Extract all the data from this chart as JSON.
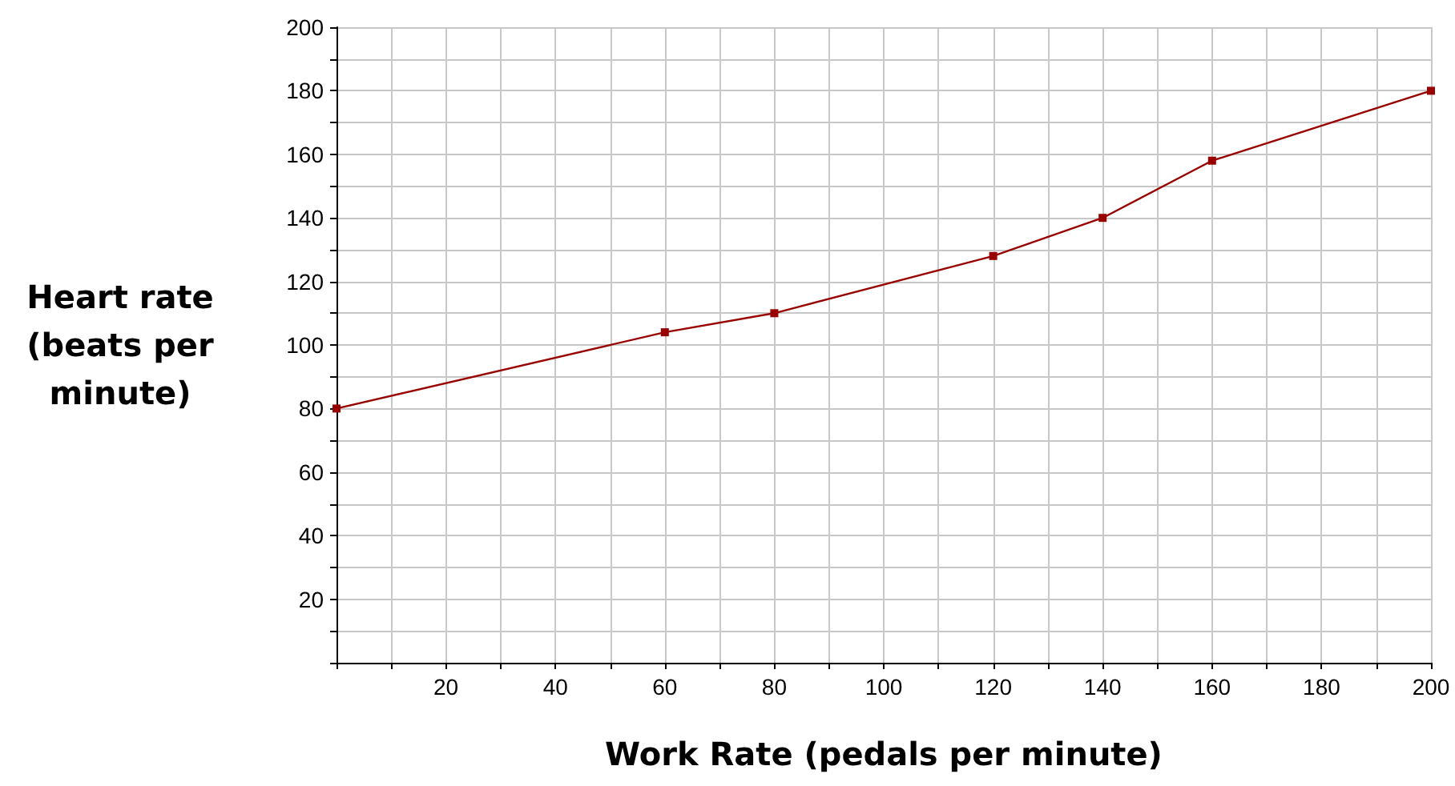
{
  "chart_data": {
    "type": "line",
    "xlabel": "Work Rate (pedals per minute)",
    "ylabel": "Heart rate (beats per minute)",
    "x": [
      0,
      60,
      80,
      120,
      140,
      160,
      200
    ],
    "series": [
      {
        "color": "#990000",
        "values": [
          80,
          104,
          110,
          128,
          140,
          158,
          180
        ]
      }
    ],
    "xlim": [
      0,
      200
    ],
    "ylim": [
      0,
      200
    ],
    "xticks": [
      {
        "value": 0,
        "label": null
      },
      {
        "value": 10,
        "label": null
      },
      20,
      {
        "value": 30,
        "label": null
      },
      40,
      {
        "value": 50,
        "label": null
      },
      60,
      {
        "value": 70,
        "label": null
      },
      80,
      {
        "value": 90,
        "label": null
      },
      100,
      {
        "value": 110,
        "label": null
      },
      120,
      {
        "value": 130,
        "label": null
      },
      140,
      {
        "value": 150,
        "label": null
      },
      160,
      {
        "value": 170,
        "label": null
      },
      180,
      {
        "value": 190,
        "label": null
      },
      200
    ],
    "yticks": [
      {
        "value": 0,
        "label": null
      },
      {
        "value": 10,
        "label": null
      },
      20,
      {
        "value": 30,
        "label": null
      },
      40,
      {
        "value": 50,
        "label": null
      },
      60,
      {
        "value": 70,
        "label": null
      },
      80,
      {
        "value": 90,
        "label": null
      },
      100,
      {
        "value": 110,
        "label": null
      },
      120,
      {
        "value": 130,
        "label": null
      },
      140,
      {
        "value": 150,
        "label": null
      },
      160,
      {
        "value": 170,
        "label": null
      },
      180,
      {
        "value": 190,
        "label": null
      },
      200
    ],
    "grid": true,
    "marker": "square",
    "line_style": "solid"
  }
}
